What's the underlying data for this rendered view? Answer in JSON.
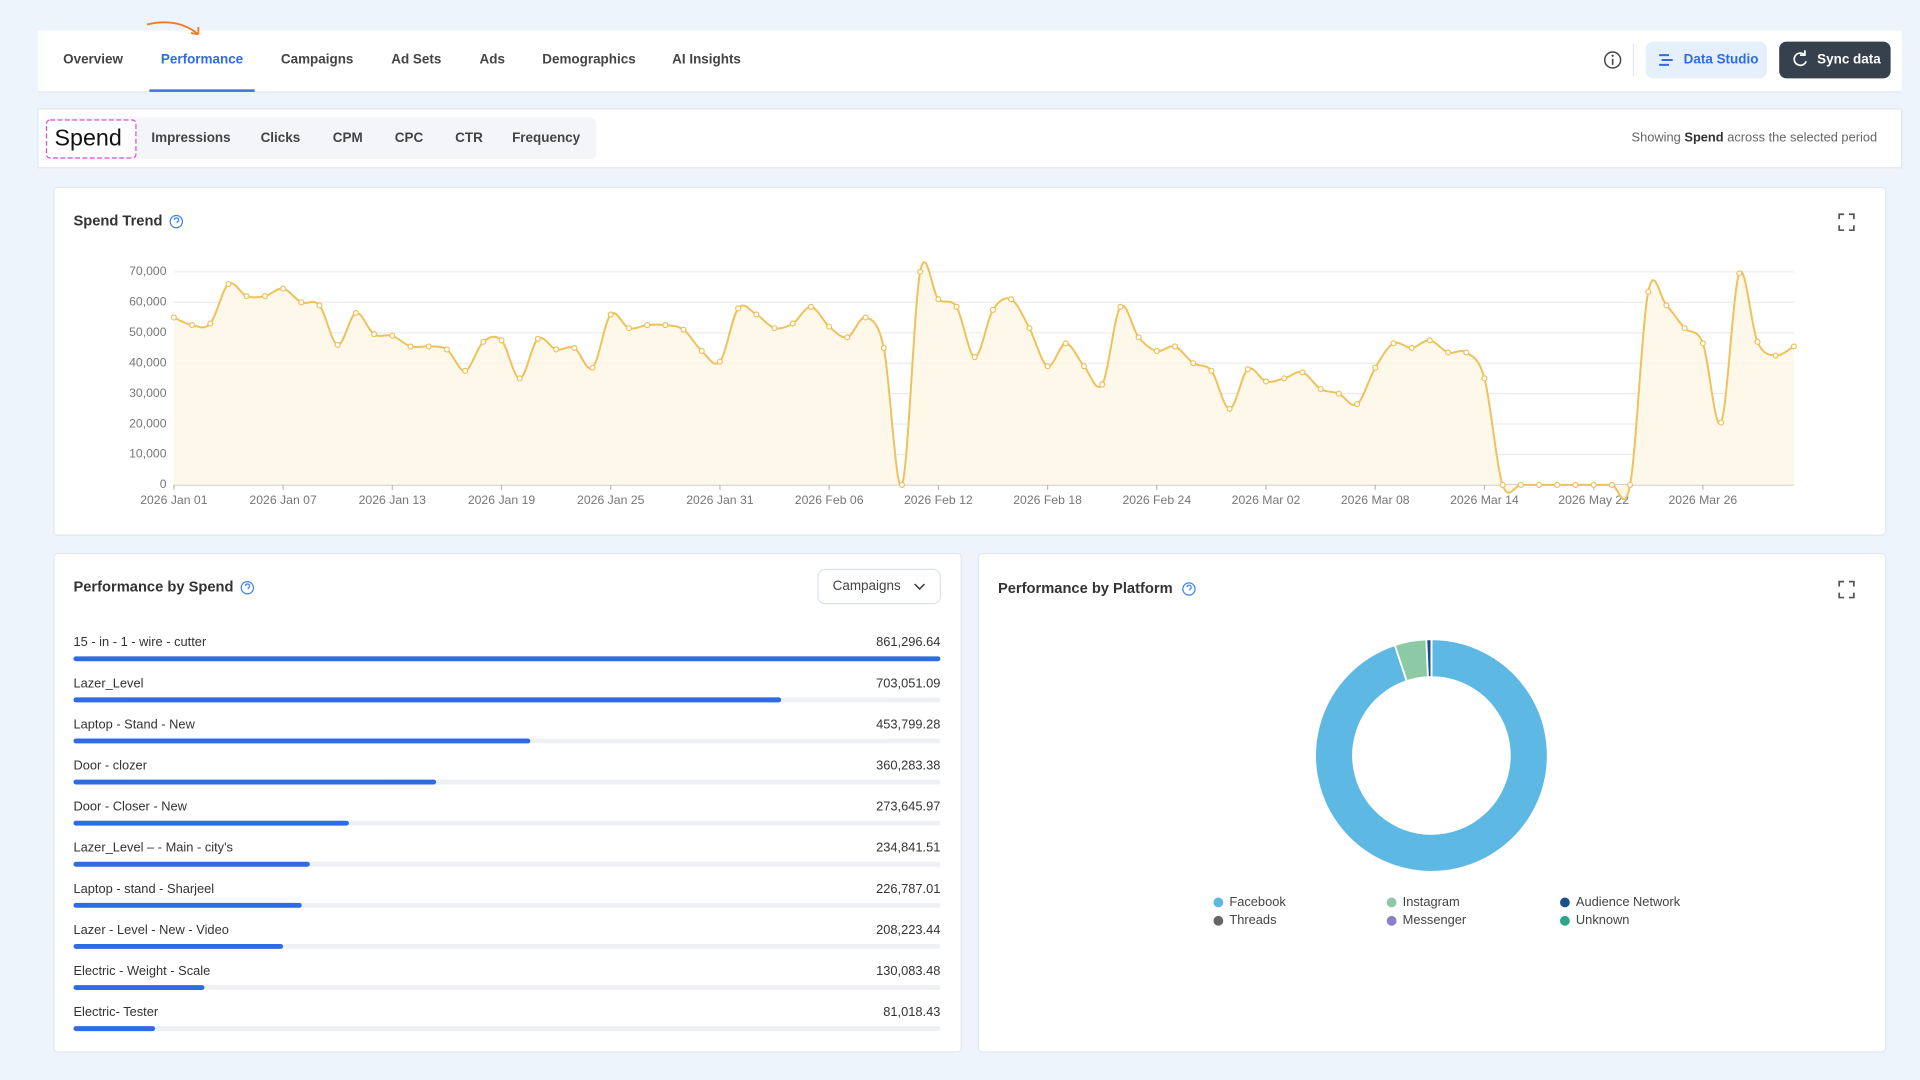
{
  "nav": {
    "tabs": [
      "Overview",
      "Performance",
      "Campaigns",
      "Ad Sets",
      "Ads",
      "Demographics",
      "AI Insights"
    ],
    "buttons": [
      "Data Studio",
      "Sync data"
    ]
  },
  "metrics": {
    "tabs": [
      "Spend",
      "Impressions",
      "Clicks",
      "CPM",
      "CPC",
      "CTR",
      "Frequency"
    ],
    "note": {
      "prefix": "Showing",
      "metric": "Spend",
      "suffix": "across the selected period"
    }
  },
  "chart_data": [
    {
      "type": "line",
      "title": "Spend Trend",
      "color": "#eec15a",
      "area_color": "#fdf7e8",
      "grid": true,
      "categories": [
        "2026 Jan 01",
        null,
        null,
        null,
        null,
        null,
        "2026 Jan 07",
        null,
        null,
        null,
        null,
        null,
        "2026 Jan 13",
        null,
        null,
        null,
        null,
        null,
        "2026 Jan 19",
        null,
        null,
        null,
        null,
        null,
        "2026 Jan 25",
        null,
        null,
        null,
        null,
        null,
        "2026 Jan 31",
        null,
        null,
        null,
        null,
        null,
        "2026 Feb 06",
        null,
        null,
        null,
        null,
        null,
        "2026 Feb 12",
        null,
        null,
        null,
        null,
        null,
        "2026 Feb 18",
        null,
        null,
        null,
        null,
        null,
        "2026 Feb 24",
        null,
        null,
        null,
        null,
        null,
        "2026 Mar 02",
        null,
        null,
        null,
        null,
        null,
        "2026 Mar 08",
        null,
        null,
        null,
        null,
        null,
        "2026 Mar 14",
        null,
        null,
        null,
        null,
        null,
        "2026 May 22",
        null,
        null,
        null,
        null,
        null,
        "2026 Mar 26",
        null,
        null,
        null,
        null,
        null
      ],
      "values": [
        55000,
        52500,
        53000,
        66000,
        62000,
        62000,
        64500,
        60000,
        59000,
        46000,
        56500,
        49500,
        49000,
        45500,
        45500,
        44500,
        37500,
        47000,
        47500,
        35000,
        48000,
        44500,
        45000,
        38500,
        56000,
        51500,
        52500,
        52500,
        51000,
        44000,
        40500,
        58000,
        56000,
        51500,
        53000,
        58500,
        52000,
        48500,
        55000,
        45000,
        0,
        70000,
        61000,
        58500,
        42000,
        57500,
        61000,
        51500,
        39000,
        46500,
        39000,
        33000,
        58500,
        48500,
        44000,
        45500,
        40000,
        37500,
        25000,
        38000,
        34000,
        35000,
        37000,
        31500,
        30000,
        26500,
        38500,
        46500,
        45000,
        47500,
        43500,
        43500,
        35000,
        0,
        0,
        0,
        0,
        0,
        0,
        0,
        0,
        63500,
        59000,
        51500,
        46500,
        20500,
        69500,
        47000,
        42500,
        45500
      ],
      "ylim": [
        0,
        70000
      ],
      "yticks": [
        0,
        {
          "value": 10000,
          "label": "10,000"
        },
        {
          "value": 20000,
          "label": "20,000"
        },
        {
          "value": 30000,
          "label": "30,000"
        },
        {
          "value": 40000,
          "label": "40,000"
        },
        {
          "value": 50000,
          "label": "50,000"
        },
        {
          "value": 60000,
          "label": "60,000"
        },
        {
          "value": 70000,
          "label": "70,000"
        }
      ]
    },
    {
      "type": "bar",
      "orientation": "horizontal",
      "title": "Performance by Spend",
      "dropdown": "Campaigns",
      "color": "#2f6be4",
      "categories": [
        "15 - in - 1 - wire - cutter",
        "Lazer_Level",
        "Laptop - Stand - New",
        "Door - clozer",
        "Door - Closer - New",
        "Lazer_Level – - Main - city's",
        "Laptop - stand - Sharjeel",
        "Lazer - Level - New - Video",
        "Electric - Weight - Scale",
        "Electric- Tester"
      ],
      "values": [
        861296.64,
        703051.09,
        453799.28,
        360283.38,
        273645.97,
        234841.51,
        226787.01,
        208223.44,
        130083.48,
        81018.43
      ],
      "value_labels": [
        "861,296.64",
        "703,051.09",
        "453,799.28",
        "360,283.38",
        "273,645.97",
        "234,841.51",
        "226,787.01",
        "208,223.44",
        "130,083.48",
        "81,018.43"
      ]
    },
    {
      "type": "pie",
      "donut": true,
      "title": "Performance by Platform",
      "categories": [
        "Facebook",
        "Instagram",
        "Audience Network",
        "Threads",
        "Messenger",
        "Unknown"
      ],
      "values": [
        94.9,
        4.4,
        0.7,
        0,
        0,
        0
      ],
      "colors": [
        "#5db8e4",
        "#8cc9a5",
        "#1b4f8a",
        "#666666",
        "#8b7fc9",
        "#2ca58d"
      ]
    }
  ]
}
